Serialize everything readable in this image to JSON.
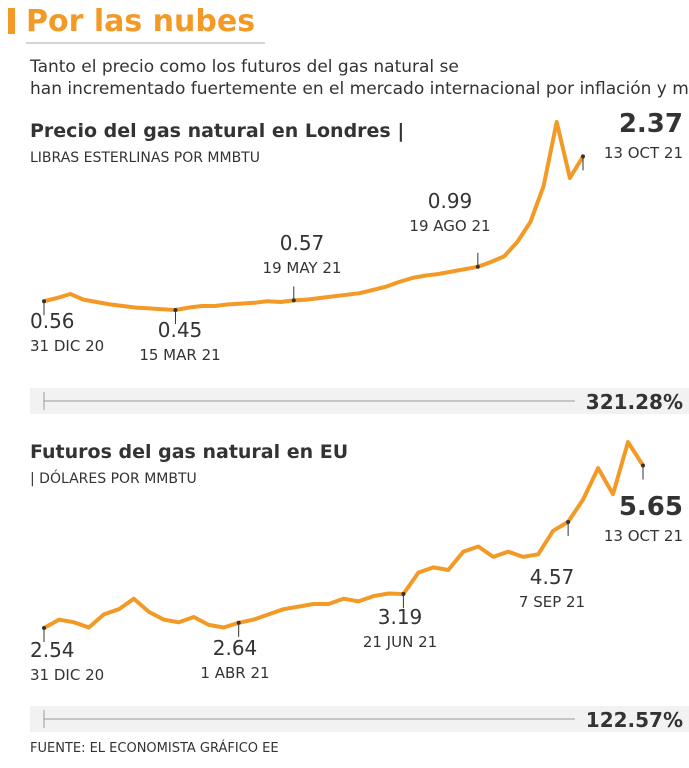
{
  "title": "Por las nubes",
  "subtitle": "Tanto el precio como los futuros del gas natural se han incrementado fuertemente en el mercado internacional por inflación y mayor demanda.",
  "source": "FUENTE: EL ECONOMISTA GRÁFICO EE",
  "chart_data": [
    {
      "type": "line",
      "title": "Precio del gas natural en Londres |",
      "subtitle": "LIBRAS ESTERLINAS POR MMBTU",
      "change": "321.28%",
      "color": "#f39a26",
      "categories": [
        "31 DIC 20",
        null,
        null,
        null,
        null,
        null,
        null,
        null,
        null,
        null,
        "15 MAR 21",
        null,
        null,
        null,
        null,
        null,
        null,
        null,
        null,
        "19 MAY 21",
        null,
        null,
        null,
        null,
        null,
        null,
        null,
        null,
        null,
        null,
        null,
        null,
        null,
        "19 AGO 21",
        null,
        null,
        null,
        null,
        null,
        null,
        null,
        "13 OCT 21"
      ],
      "values": [
        0.56,
        0.6,
        0.65,
        0.58,
        0.55,
        0.52,
        0.5,
        0.48,
        0.47,
        0.46,
        0.45,
        0.48,
        0.5,
        0.5,
        0.52,
        0.53,
        0.54,
        0.56,
        0.55,
        0.57,
        0.58,
        0.6,
        0.62,
        0.64,
        0.66,
        0.7,
        0.74,
        0.8,
        0.85,
        0.88,
        0.9,
        0.93,
        0.96,
        0.99,
        1.05,
        1.12,
        1.3,
        1.55,
        2.0,
        2.8,
        2.1,
        2.37
      ]
    },
    {
      "type": "line",
      "title": "Futuros del gas natural en EU",
      "subtitle": "| DÓLARES POR MMBTU",
      "change": "122.57%",
      "color": "#f39a26",
      "categories": [
        "31 DIC 20",
        null,
        null,
        null,
        null,
        null,
        null,
        null,
        null,
        null,
        null,
        null,
        null,
        "1 ABR 21",
        null,
        null,
        null,
        null,
        null,
        null,
        null,
        null,
        null,
        null,
        "21 JUN 21",
        null,
        null,
        null,
        null,
        null,
        null,
        null,
        null,
        null,
        null,
        "7 SEP 21",
        null,
        null,
        null,
        null,
        "13 OCT 21"
      ],
      "values": [
        2.54,
        2.7,
        2.65,
        2.55,
        2.8,
        2.9,
        3.1,
        2.85,
        2.7,
        2.65,
        2.75,
        2.6,
        2.55,
        2.64,
        2.7,
        2.8,
        2.9,
        2.95,
        3.0,
        3.0,
        3.1,
        3.05,
        3.15,
        3.2,
        3.19,
        3.6,
        3.7,
        3.65,
        4.0,
        4.1,
        3.9,
        4.0,
        3.9,
        3.95,
        4.4,
        4.57,
        5.0,
        5.6,
        5.1,
        6.1,
        5.65
      ]
    }
  ]
}
